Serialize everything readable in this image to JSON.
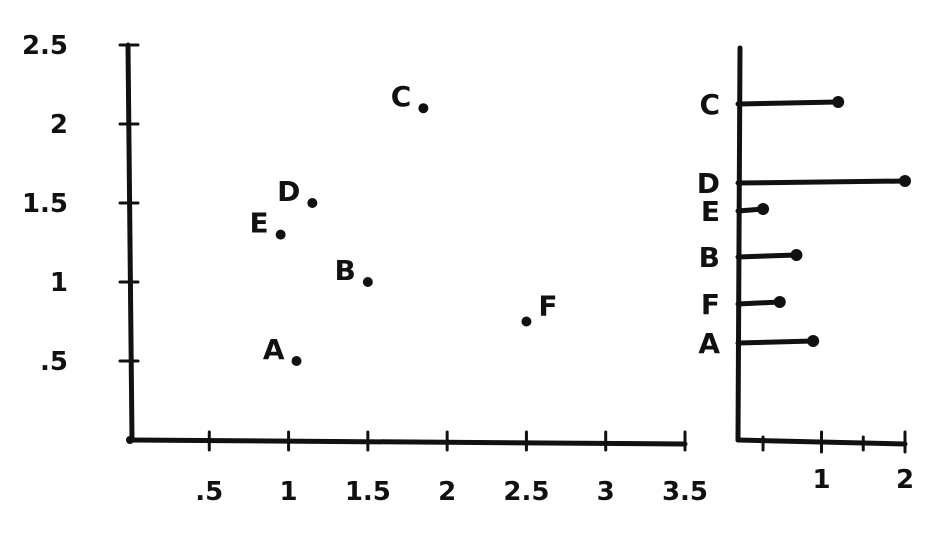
{
  "chart_data": [
    {
      "type": "scatter",
      "xlim": [
        0,
        3.5
      ],
      "ylim": [
        0,
        2.5
      ],
      "x_ticks": [
        ".5",
        "1",
        "1.5",
        "2",
        "2.5",
        "3",
        "3.5"
      ],
      "x_tick_values": [
        0.5,
        1,
        1.5,
        2,
        2.5,
        3,
        3.5
      ],
      "y_ticks": [
        "2.5",
        "2",
        "1.5",
        "1",
        ".5"
      ],
      "y_tick_values": [
        2.5,
        2,
        1.5,
        1,
        0.5
      ],
      "points": [
        {
          "label": "A",
          "x": 1.05,
          "y": 0.5
        },
        {
          "label": "B",
          "x": 1.5,
          "y": 1.0
        },
        {
          "label": "C",
          "x": 1.85,
          "y": 2.1
        },
        {
          "label": "D",
          "x": 1.15,
          "y": 1.5
        },
        {
          "label": "E",
          "x": 0.95,
          "y": 1.3
        },
        {
          "label": "F",
          "x": 2.5,
          "y": 0.75
        }
      ],
      "grid": false,
      "title": "",
      "xlabel": "",
      "ylabel": ""
    },
    {
      "type": "bar",
      "orientation": "horizontal",
      "categories": [
        "C",
        "D",
        "E",
        "B",
        "F",
        "A"
      ],
      "values": [
        1.2,
        2.0,
        0.3,
        0.7,
        0.5,
        0.9
      ],
      "xlim": [
        0,
        2
      ],
      "x_ticks": [
        "1",
        "2"
      ],
      "x_tick_values": [
        1,
        2
      ],
      "grid": false,
      "title": "",
      "xlabel": "",
      "ylabel": ""
    }
  ]
}
